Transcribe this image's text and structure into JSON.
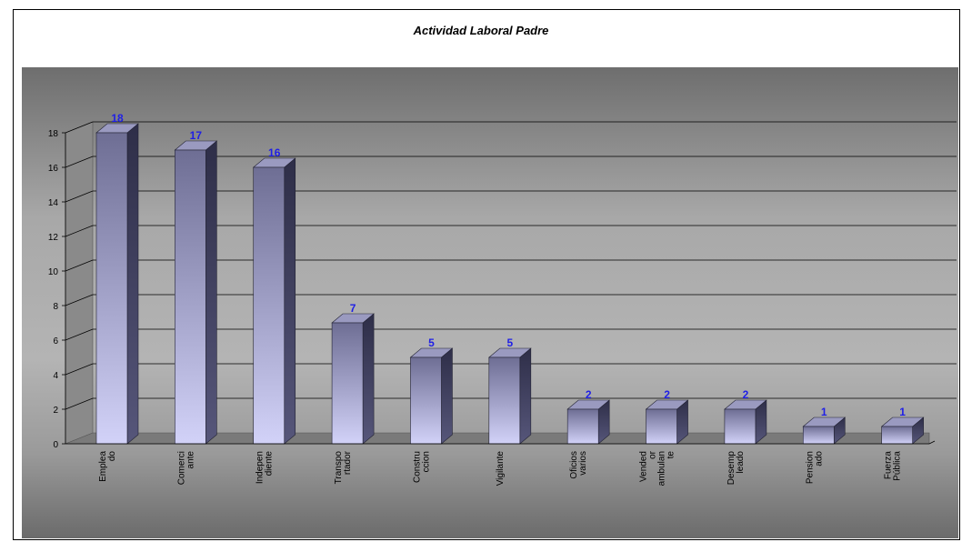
{
  "chart_data": {
    "type": "bar",
    "title": "Actividad Laboral Padre",
    "xlabel": "",
    "ylabel": "",
    "ylim": [
      0,
      18
    ],
    "yticks": [
      0,
      2,
      4,
      6,
      8,
      10,
      12,
      14,
      16,
      18
    ],
    "categories": [
      [
        "Emplea",
        "do"
      ],
      [
        "Comerci",
        "ante"
      ],
      [
        "Indepen",
        "diente"
      ],
      [
        "Transpo",
        "rtador"
      ],
      [
        "Constru",
        "ccion"
      ],
      [
        "Vigilante"
      ],
      [
        "Oficios",
        "varios"
      ],
      [
        "Vended",
        "or",
        "ambulan",
        "te"
      ],
      [
        "Desemp",
        "leado"
      ],
      [
        "Pension",
        "ado"
      ],
      [
        "Fuerza",
        "Pública"
      ]
    ],
    "values": [
      18,
      17,
      16,
      7,
      5,
      5,
      2,
      2,
      2,
      1,
      1
    ],
    "grid": true,
    "legend": "none",
    "colors": {
      "bar_front_top": "#6e6e94",
      "bar_front_bottom": "#d2d2f8",
      "bar_side": "#3c3c5a",
      "bar_top": "#9a9ac0",
      "data_label": "#1f1fe6"
    }
  }
}
